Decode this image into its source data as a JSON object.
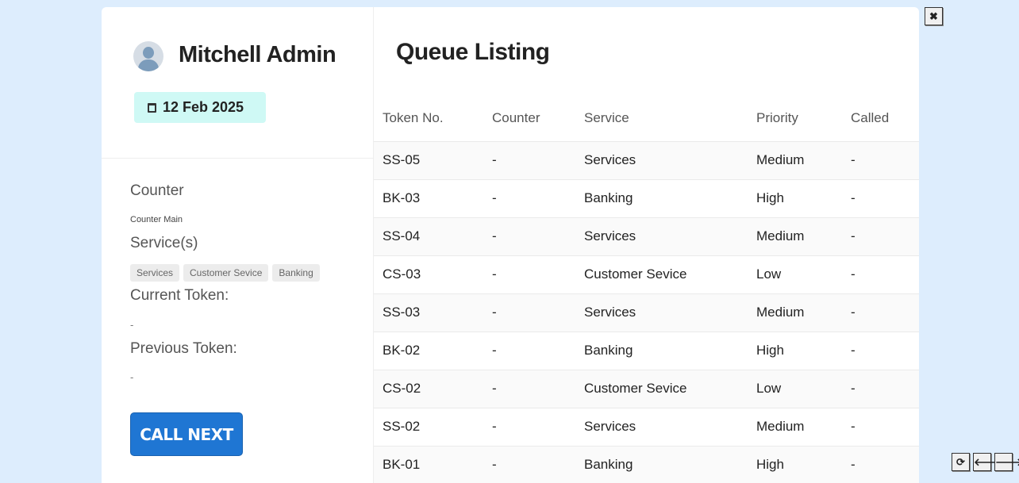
{
  "user": {
    "name": "Mitchell Admin",
    "date": "12 Feb 2025"
  },
  "panel": {
    "counter_label": "Counter",
    "counter_value": "Counter Main",
    "services_label": "Service(s)",
    "services": [
      "Services",
      "Customer Sevice",
      "Banking"
    ],
    "current_label": "Current Token:",
    "current_value": "-",
    "previous_label": "Previous Token:",
    "previous_value": "-",
    "call_next": "CALL NEXT"
  },
  "queue": {
    "title": "Queue Listing",
    "columns": [
      "Token No.",
      "Counter",
      "Service",
      "Priority",
      "Called"
    ],
    "rows": [
      [
        "SS-05",
        "-",
        "Services",
        "Medium",
        "-"
      ],
      [
        "BK-03",
        "-",
        "Banking",
        "High",
        "-"
      ],
      [
        "SS-04",
        "-",
        "Services",
        "Medium",
        "-"
      ],
      [
        "CS-03",
        "-",
        "Customer Sevice",
        "Low",
        "-"
      ],
      [
        "SS-03",
        "-",
        "Services",
        "Medium",
        "-"
      ],
      [
        "BK-02",
        "-",
        "Banking",
        "High",
        "-"
      ],
      [
        "CS-02",
        "-",
        "Customer Sevice",
        "Low",
        "-"
      ],
      [
        "SS-02",
        "-",
        "Services",
        "Medium",
        "-"
      ],
      [
        "BK-01",
        "-",
        "Banking",
        "High",
        "-"
      ]
    ]
  },
  "controls": {
    "close": "✖",
    "refresh": "⟳",
    "prev": "🡐",
    "next": "🡒"
  }
}
